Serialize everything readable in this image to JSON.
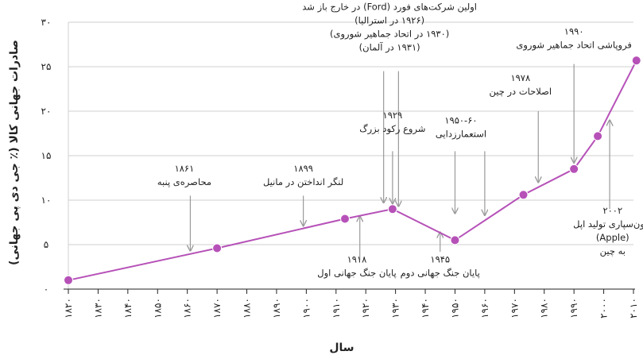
{
  "chart_data": {
    "type": "line",
    "xlabel": "سال",
    "ylabel": "صادرات جهانی کالا (٪ جی دی پی جهانی)",
    "xlim": [
      1820,
      2010
    ],
    "ylim": [
      0,
      30
    ],
    "x_ticks": [
      1820,
      1830,
      1840,
      1850,
      1860,
      1870,
      1880,
      1890,
      1900,
      1910,
      1920,
      1930,
      1940,
      1950,
      1960,
      1970,
      1980,
      1990,
      2000,
      2010
    ],
    "x_tick_labels": [
      "۱۸۲۰",
      "۱۸۳۰",
      "۱۸۴۰",
      "۱۸۵۰",
      "۱۸۶۰",
      "۱۸۷۰",
      "۱۸۸۰",
      "۱۸۹۰",
      "۱۹۰۰",
      "۱۹۱۰",
      "۱۹۲۰",
      "۱۹۳۰",
      "۱۹۴۰",
      "۱۹۵۰",
      "۱۹۶۰",
      "۱۹۷۰",
      "۱۹۸۰",
      "۱۹۹۰",
      "۲۰۰۰",
      "۲۰۱۰"
    ],
    "y_ticks": [
      0,
      5,
      10,
      15,
      20,
      25,
      30
    ],
    "y_tick_labels": [
      "۰",
      "۵",
      "۱۰",
      "۱۵",
      "۲۰",
      "۲۵",
      "۳۰"
    ],
    "grid": "horizontal",
    "series": [
      {
        "color": "#b651b8",
        "x": [
          1820,
          1870,
          1913,
          1929,
          1950,
          1973,
          1990,
          1998,
          2011
        ],
        "y": [
          1.0,
          4.6,
          7.9,
          9.0,
          5.5,
          10.6,
          13.5,
          17.2,
          25.7
        ]
      }
    ],
    "annotations": [
      {
        "id": "a1861",
        "lines": [
          "۱۸۶۱",
          "محاصره‌ی پنبه"
        ],
        "arrow_x": 1861,
        "arrow_from_y": 10.5,
        "arrow_to_y": 4.3,
        "text_x": 1859,
        "text_y": 13.2
      },
      {
        "id": "a1899",
        "lines": [
          "۱۸۹۹",
          "لنگر انداختن در مانیل"
        ],
        "arrow_x": 1899,
        "arrow_from_y": 10.5,
        "arrow_to_y": 7.1,
        "text_x": 1899,
        "text_y": 13.2
      },
      {
        "id": "a1918",
        "lines": [
          "۱۹۱۸",
          "پایان جنگ جهانی اول"
        ],
        "arrow_x": 1918,
        "arrow_from_y": 3.3,
        "arrow_to_y": 8.2,
        "text_x": 1917,
        "text_y": 3.0
      },
      {
        "id": "a1929",
        "lines": [
          "۱۹۲۹",
          "شروع رکود بزرگ"
        ],
        "arrow_x": 1929,
        "arrow_from_y": 15.5,
        "arrow_to_y": 9.6,
        "text_x": 1929,
        "text_y": 19.2
      },
      {
        "id": "aford",
        "lines": [
          "اولین شرکت‌های فورد (Ford) در خارج باز شد",
          "(۱۹۲۶ در استرالیا)",
          "(۱۹۳۰ در اتحاد جماهیر شوروی)",
          "(۱۹۳۱ در آلمان)"
        ],
        "arrow_x": 1926,
        "arrow_from_y": 24.5,
        "arrow_to_y": 9.7,
        "text_x": 1928,
        "text_y": 31.4
      },
      {
        "id": "aford2",
        "lines": [],
        "arrow_x": 1931,
        "arrow_from_y": 24.5,
        "arrow_to_y": 9.3,
        "text_x": 1931,
        "text_y": 24.5
      },
      {
        "id": "a1945",
        "lines": [
          "۱۹۴۵",
          "پایان جنگ جهانی دوم"
        ],
        "arrow_x": 1945,
        "arrow_from_y": 4.2,
        "arrow_to_y": 6.4,
        "text_x": 1945,
        "text_y": 3.0
      },
      {
        "id": "a1950",
        "lines": [
          "۱۹۵۰-۶۰",
          "استعمارزدایی"
        ],
        "arrow_x": 1950,
        "arrow_from_y": 15.5,
        "arrow_to_y": 8.5,
        "text_x": 1952,
        "text_y": 18.6
      },
      {
        "id": "a1960",
        "lines": [],
        "arrow_x": 1960,
        "arrow_from_y": 15.5,
        "arrow_to_y": 8.3,
        "text_x": 1960,
        "text_y": 15.5
      },
      {
        "id": "a1978",
        "lines": [
          "۱۹۷۸",
          "اصلاحات در چین"
        ],
        "arrow_x": 1978,
        "arrow_from_y": 20,
        "arrow_to_y": 12.0,
        "text_x": 1972,
        "text_y": 23.4
      },
      {
        "id": "a1990",
        "lines": [
          "۱۹۹۰",
          "فروپاشی اتحاد جماهیر شوروی"
        ],
        "arrow_x": 1990,
        "arrow_from_y": 25.3,
        "arrow_to_y": 14.2,
        "text_x": 1990,
        "text_y": 28.6
      },
      {
        "id": "a2002",
        "lines": [
          "۲۰۰۲",
          "برون‌سپاری تولید اپل",
          "(Apple)",
          "به چین"
        ],
        "arrow_x": 2002,
        "arrow_from_y": 9.0,
        "arrow_to_y": 19.0,
        "text_x": 2003,
        "text_y": 8.5
      }
    ]
  }
}
